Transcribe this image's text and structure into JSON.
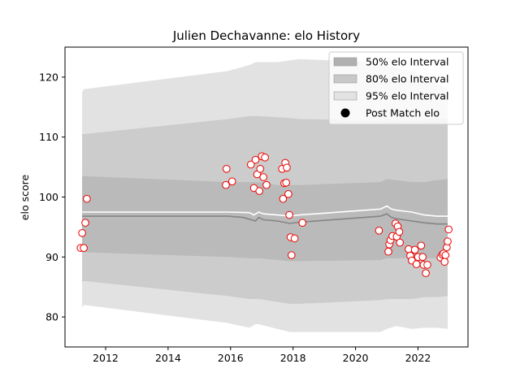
{
  "chart_data": {
    "type": "line",
    "title": "Julien Dechavanne: elo History",
    "xlabel": "",
    "ylabel": "elo score",
    "xlim": [
      2010.7,
      2023.6
    ],
    "ylim": [
      75,
      125
    ],
    "xticks": [
      2012,
      2014,
      2016,
      2018,
      2020,
      2022
    ],
    "yticks": [
      80,
      90,
      100,
      110,
      120
    ],
    "grid": false,
    "legend_position": "upper right",
    "legend": [
      {
        "label": "50% elo Interval",
        "kind": "band",
        "color": "#b0b0b0"
      },
      {
        "label": "80% elo Interval",
        "kind": "band",
        "color": "#c8c8c8"
      },
      {
        "label": "95% elo Interval",
        "kind": "band",
        "color": "#e2e2e2"
      },
      {
        "label": "Post Match elo",
        "kind": "marker",
        "color": "#000000"
      }
    ],
    "colors": {
      "band95": "#e2e2e2",
      "band80": "#cccccc",
      "band50": "#bababa",
      "mean_line": "#ffffff",
      "median_line": "#858585",
      "marker_fill": "#ffffff",
      "marker_edge": "#ee0000"
    },
    "bands": {
      "x": [
        2011.25,
        2011.3,
        2015.9,
        2016.6,
        2016.8,
        2016.9,
        2017.5,
        2017.9,
        2018.2,
        2020.8,
        2021.0,
        2021.3,
        2021.8,
        2022.2,
        2022.6,
        2022.95
      ],
      "band95_upper": [
        117.5,
        118.0,
        121.0,
        122.0,
        122.5,
        122.5,
        122.5,
        122.8,
        123.0,
        122.5,
        122.0,
        121.5,
        121.0,
        120.0,
        119.0,
        118.0
      ],
      "band95_lower": [
        81.5,
        82.0,
        79.0,
        78.2,
        78.8,
        78.8,
        78.0,
        77.5,
        77.5,
        77.5,
        78.0,
        78.5,
        78.0,
        78.2,
        78.2,
        78.0
      ],
      "band80_upper": [
        110.5,
        110.5,
        113.0,
        113.5,
        113.5,
        113.5,
        113.3,
        113.2,
        113.0,
        112.8,
        113.0,
        113.0,
        112.8,
        113.0,
        113.0,
        113.0
      ],
      "band80_lower": [
        85.8,
        86.0,
        83.5,
        83.0,
        83.0,
        83.0,
        82.5,
        82.2,
        82.2,
        82.8,
        83.0,
        83.0,
        83.0,
        83.3,
        83.3,
        83.5
      ],
      "band50_upper": [
        103.5,
        103.5,
        102.5,
        102.5,
        102.5,
        102.5,
        102.0,
        102.0,
        102.0,
        102.5,
        103.0,
        102.8,
        102.5,
        102.5,
        102.8,
        103.0
      ],
      "band50_lower": [
        90.8,
        90.8,
        90.0,
        89.8,
        89.8,
        89.8,
        89.5,
        89.3,
        89.3,
        89.5,
        89.8,
        89.8,
        89.8,
        89.8,
        89.8,
        90.0
      ]
    },
    "series": [
      {
        "role": "mean",
        "x": [
          2011.25,
          2015.9,
          2016.6,
          2016.75,
          2016.9,
          2017.05,
          2017.5,
          2017.9,
          2018.2,
          2020.8,
          2021.0,
          2021.15,
          2021.3,
          2021.8,
          2022.2,
          2022.6,
          2022.95
        ],
        "values": [
          97.5,
          97.5,
          97.4,
          97.0,
          97.5,
          97.2,
          97.0,
          96.8,
          97.0,
          98.0,
          98.5,
          98.0,
          97.8,
          97.5,
          97.0,
          96.8,
          96.8
        ]
      },
      {
        "role": "median",
        "x": [
          2011.25,
          2015.9,
          2016.4,
          2016.8,
          2016.9,
          2017.05,
          2017.5,
          2017.9,
          2018.2,
          2020.8,
          2021.0,
          2021.15,
          2021.3,
          2021.8,
          2022.2,
          2022.6,
          2022.95
        ],
        "values": [
          96.8,
          96.8,
          96.6,
          96.0,
          96.6,
          96.2,
          96.0,
          95.6,
          95.8,
          96.8,
          97.2,
          96.6,
          96.4,
          96.0,
          95.7,
          95.5,
          95.5
        ]
      }
    ],
    "points": {
      "name": "Post Match elo",
      "x": [
        2011.2,
        2011.25,
        2011.3,
        2011.35,
        2011.4,
        2015.85,
        2015.87,
        2016.05,
        2016.65,
        2016.75,
        2016.8,
        2016.85,
        2016.92,
        2016.95,
        2017.0,
        2017.05,
        2017.1,
        2017.15,
        2017.65,
        2017.68,
        2017.72,
        2017.75,
        2017.78,
        2017.8,
        2017.85,
        2017.88,
        2017.92,
        2017.95,
        2018.05,
        2018.3,
        2020.75,
        2021.05,
        2021.08,
        2021.12,
        2021.18,
        2021.28,
        2021.32,
        2021.35,
        2021.4,
        2021.42,
        2021.7,
        2021.75,
        2021.8,
        2021.9,
        2021.95,
        2022.0,
        2022.1,
        2022.15,
        2022.18,
        2022.25,
        2022.3,
        2022.72,
        2022.78,
        2022.82,
        2022.85,
        2022.88,
        2022.92,
        2022.95,
        2022.98
      ],
      "values": [
        91.5,
        94.0,
        91.5,
        95.7,
        99.7,
        102.0,
        104.7,
        102.6,
        105.4,
        101.5,
        106.2,
        103.8,
        101.0,
        104.7,
        106.8,
        103.3,
        106.6,
        102.0,
        104.7,
        99.7,
        102.3,
        105.7,
        102.4,
        104.9,
        100.5,
        97.0,
        93.3,
        90.3,
        93.1,
        95.7,
        94.4,
        90.9,
        92.1,
        92.8,
        93.5,
        95.6,
        93.4,
        95.1,
        94.2,
        92.4,
        91.3,
        90.2,
        89.4,
        91.2,
        88.8,
        90.0,
        91.9,
        90.0,
        88.7,
        87.3,
        88.7,
        89.9,
        90.4,
        90.6,
        89.2,
        90.3,
        91.6,
        92.6,
        94.6
      ]
    }
  }
}
